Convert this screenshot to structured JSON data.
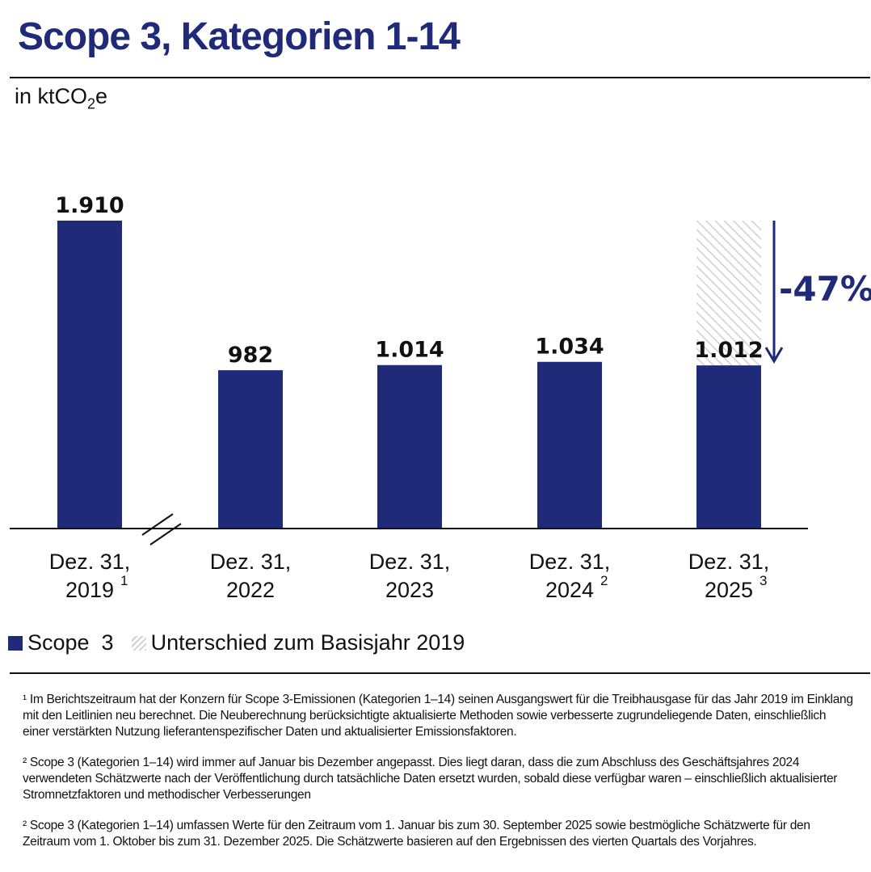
{
  "title": "Scope 3, Kategorien 1-14",
  "unit_prefix": "in ktCO",
  "unit_sub": "2",
  "unit_suffix": "e",
  "colors": {
    "bar": "#1f2a78",
    "hatch": "#d0d0d0",
    "text": "#111111"
  },
  "chart_data": {
    "type": "bar",
    "categories": [
      {
        "line1": "Dez. 31,",
        "line2": "2019",
        "sup": "1"
      },
      {
        "line1": "Dez. 31,",
        "line2": "2022",
        "sup": ""
      },
      {
        "line1": "Dez. 31,",
        "line2": "2023",
        "sup": ""
      },
      {
        "line1": "Dez. 31,",
        "line2": "2024",
        "sup": "2"
      },
      {
        "line1": "Dez. 31,",
        "line2": "2025",
        "sup": "3"
      }
    ],
    "series": [
      {
        "name": "Scope  3",
        "values": [
          1910,
          982,
          1014,
          1034,
          1012
        ]
      }
    ],
    "value_labels": [
      "1.910",
      "982",
      "1.014",
      "1.034",
      "1.012"
    ],
    "difference": {
      "name": "Unterschied zum Basisjahr 2019",
      "from": 1910,
      "to": 1012,
      "label": "-47%"
    },
    "axis_break_after": "2019",
    "ylim": [
      0,
      1910
    ],
    "grid": false,
    "legend": "bottom-left"
  },
  "footnotes": [
    "¹ Im Berichtszeitraum hat der Konzern für Scope 3-Emissionen (Kategorien 1–14) seinen Ausgangswert für die Treibhausgase für das Jahr 2019 im Einklang mit den Leitlinien neu berechnet. Die Neuberechnung berücksichtigte aktualisierte Methoden sowie verbesserte zugrundeliegende Daten, einschließlich einer verstärkten Nutzung lieferantenspezifischer Daten und aktualisierter Emissionsfaktoren.",
    "² Scope 3 (Kategorien 1–14) wird immer auf Januar bis Dezember angepasst. Dies liegt daran, dass die zum Abschluss des Geschäftsjahres 2024 verwendeten Schätzwerte nach der Veröffentlichung durch tatsächliche Daten ersetzt wurden, sobald diese verfügbar waren – einschließlich aktualisierter Stromnetzfaktoren und methodischer Verbesserungen",
    "² Scope 3 (Kategorien 1–14) umfassen Werte für den Zeitraum vom 1. Januar bis zum 30. September 2025 sowie bestmögliche Schätzwerte für den Zeitraum vom 1. Oktober bis zum 31. Dezember 2025. Die Schätzwerte basieren auf den Ergebnissen des vierten Quartals des Vorjahres."
  ]
}
